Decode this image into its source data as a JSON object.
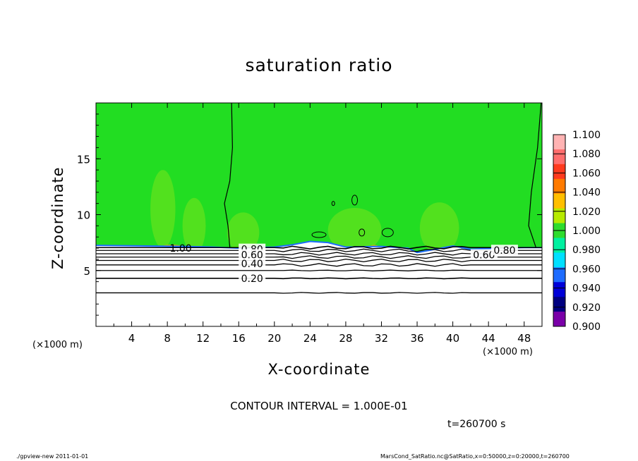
{
  "chart_data": {
    "type": "heatmap",
    "title": "saturation ratio",
    "xlabel": "X-coordinate",
    "ylabel": "Z-coordinate",
    "x_unit": "(×1000 m)",
    "x_ticks": [
      4,
      8,
      12,
      16,
      20,
      24,
      28,
      32,
      36,
      40,
      44,
      48
    ],
    "y_ticks": [
      5,
      10,
      15
    ],
    "xlim": [
      0,
      50
    ],
    "ylim": [
      0,
      20
    ],
    "colorbar": {
      "labels": [
        "1.100",
        "1.080",
        "1.060",
        "1.040",
        "1.020",
        "1.000",
        "0.980",
        "0.960",
        "0.940",
        "0.920",
        "0.900"
      ],
      "colors": [
        "#ffb3b3",
        "#ff6e6e",
        "#ff3a1e",
        "#ff7a00",
        "#ffbf00",
        "#b7ea00",
        "#2edc2e",
        "#00f0a0",
        "#00e0ff",
        "#1e6cff",
        "#0000d8",
        "#000080",
        "#7a00a8"
      ]
    },
    "contour_labels": [
      {
        "text": "1.00",
        "x": 9.5,
        "y": 7.0
      },
      {
        "text": "0.80",
        "x": 17.5,
        "y": 6.9
      },
      {
        "text": "0.60",
        "x": 17.5,
        "y": 6.4
      },
      {
        "text": "0.40",
        "x": 17.5,
        "y": 5.6
      },
      {
        "text": "0.20",
        "x": 17.5,
        "y": 4.3
      },
      {
        "text": "0.60",
        "x": 43.5,
        "y": 6.4
      },
      {
        "text": "0.80",
        "x": 45.8,
        "y": 6.8
      }
    ],
    "contour_interval_text": "CONTOUR INTERVAL = 1.000E-01"
  },
  "time_label": "t=260700 s",
  "footer_left": "./gpview-new  2011-01-01",
  "footer_right": "MarsCond_SatRatio.nc@SatRatio,x=0:50000,z=0:20000,t=260700",
  "colors": {
    "background_green": "#22dd22",
    "low_field": "#ffffff"
  }
}
